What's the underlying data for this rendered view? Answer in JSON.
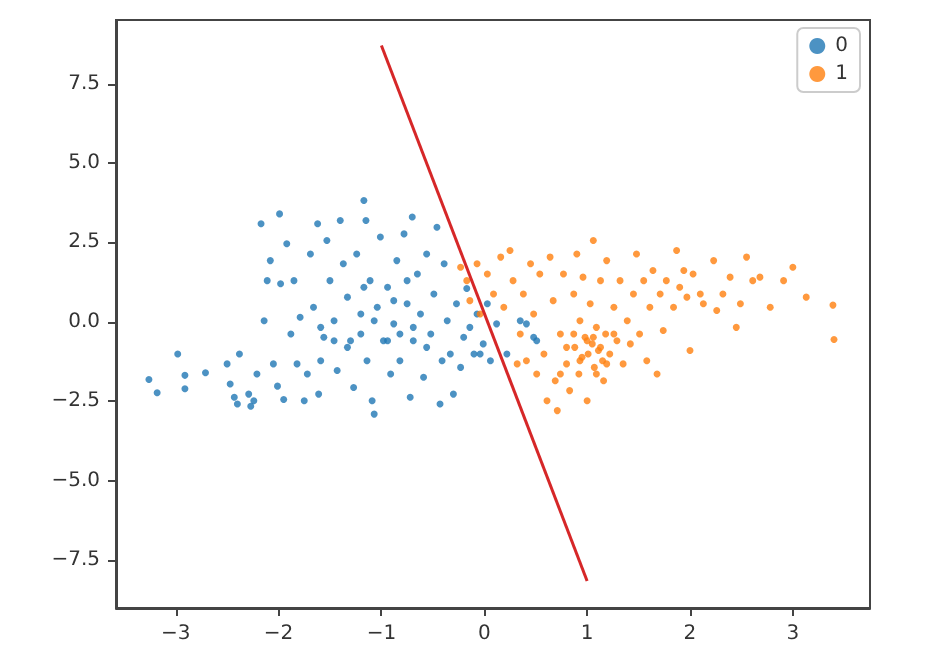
{
  "chart_data": {
    "type": "scatter",
    "xlim": [
      -3.58,
      3.75
    ],
    "ylim": [
      -9.0,
      9.5
    ],
    "xticks": [
      {
        "value": -3,
        "label": "−3"
      },
      {
        "value": -2,
        "label": "−2"
      },
      {
        "value": -1,
        "label": "−1"
      },
      0,
      1,
      2,
      3
    ],
    "yticks": [
      {
        "value": -7.5,
        "label": "−7.5"
      },
      {
        "value": -5,
        "label": "−5.0"
      },
      {
        "value": -2.5,
        "label": "−2.5"
      },
      {
        "value": 0,
        "label": "0.0"
      },
      2.5,
      {
        "value": 5,
        "label": "5.0"
      },
      7.5
    ],
    "grid": false,
    "legend": "top right",
    "marker": "circle",
    "series": [
      {
        "name": "0",
        "color": "#1f77b4",
        "x": [
          -3.26,
          -3.18,
          -2.98,
          -2.91,
          -2.91,
          -2.71,
          -2.5,
          -2.47,
          -2.43,
          -2.4,
          -2.38,
          -2.29,
          -2.27,
          -2.24,
          -2.21,
          -2.17,
          -2.14,
          -2.11,
          -2.08,
          -2.05,
          -2.01,
          -1.99,
          -1.98,
          -1.95,
          -1.92,
          -1.88,
          -1.85,
          -1.82,
          -1.79,
          -1.75,
          -1.72,
          -1.69,
          -1.66,
          -1.62,
          -1.61,
          -1.59,
          -1.56,
          -1.53,
          -1.5,
          -1.46,
          -1.43,
          -1.4,
          -1.37,
          -1.33,
          -1.3,
          -1.27,
          -1.24,
          -1.2,
          -1.17,
          -1.15,
          -1.14,
          -1.11,
          -1.09,
          -1.07,
          -1.04,
          -1.01,
          -0.98,
          -0.94,
          -0.91,
          -0.88,
          -0.85,
          -0.82,
          -0.78,
          -0.75,
          -0.72,
          -0.7,
          -0.69,
          -0.65,
          -0.62,
          -0.59,
          -0.56,
          -0.52,
          -0.49,
          -0.46,
          -0.43,
          -0.41,
          -0.39,
          -0.36,
          -0.33,
          -0.3,
          -0.27,
          -0.23,
          -0.2,
          -0.17,
          -0.14,
          -0.1,
          -0.07,
          -0.04,
          -0.01,
          0.03,
          0.06,
          0.12,
          0.22,
          0.35,
          0.41,
          0.48,
          0.51,
          -1.59,
          -1.46,
          -1.33,
          -1.2,
          -1.07,
          -0.94,
          -0.82,
          -0.69,
          -0.56,
          -0.88,
          -1.17,
          -0.75
        ],
        "values": [
          -1.81,
          -2.23,
          -1.01,
          -1.68,
          -2.1,
          -1.6,
          -1.32,
          -1.95,
          -2.37,
          -2.58,
          -1.01,
          -2.27,
          -2.65,
          -2.48,
          -1.64,
          3.09,
          0.04,
          1.3,
          1.93,
          -1.32,
          -2.02,
          3.4,
          1.2,
          -2.44,
          2.46,
          -0.38,
          1.3,
          -1.32,
          0.15,
          -2.48,
          -1.64,
          2.14,
          0.46,
          3.09,
          -2.27,
          -1.22,
          -0.48,
          2.56,
          1.3,
          0.04,
          -1.53,
          3.19,
          1.83,
          0.78,
          -0.59,
          -2.06,
          2.14,
          0.25,
          3.82,
          3.19,
          -1.22,
          1.3,
          -2.48,
          -2.9,
          0.46,
          2.67,
          -0.59,
          1.09,
          -1.64,
          -0.06,
          1.93,
          -1.22,
          2.77,
          0.57,
          -2.37,
          3.3,
          -0.59,
          1.51,
          0.25,
          -1.74,
          2.14,
          -0.38,
          0.88,
          2.98,
          -2.58,
          -1.22,
          1.83,
          0.04,
          -1.01,
          -2.27,
          0.57,
          -1.43,
          -0.48,
          1.05,
          -0.17,
          -1.01,
          0.25,
          -1.01,
          -0.69,
          0.57,
          -1.22,
          -0.06,
          -1.01,
          0.04,
          -0.06,
          -0.48,
          -0.59,
          -0.17,
          -0.59,
          -0.8,
          -0.38,
          0.04,
          -0.59,
          -0.38,
          -0.17,
          -0.8,
          0.67,
          1.09,
          1.3
        ]
      },
      {
        "name": "1",
        "color": "#ff7f0e",
        "x": [
          -0.23,
          -0.17,
          -0.14,
          -0.07,
          -0.04,
          0.03,
          0.09,
          0.16,
          0.19,
          0.25,
          0.28,
          0.32,
          0.35,
          0.38,
          0.41,
          0.45,
          0.48,
          0.51,
          0.54,
          0.58,
          0.61,
          0.64,
          0.67,
          0.69,
          0.71,
          0.74,
          0.77,
          0.8,
          0.83,
          0.87,
          0.88,
          0.9,
          0.92,
          0.93,
          0.95,
          0.96,
          0.98,
          1.0,
          1.01,
          1.03,
          1.05,
          1.06,
          1.07,
          1.09,
          1.11,
          1.13,
          1.15,
          1.16,
          1.18,
          1.19,
          1.22,
          1.26,
          1.29,
          1.32,
          1.35,
          1.39,
          1.42,
          1.45,
          1.48,
          1.51,
          1.55,
          1.58,
          1.61,
          1.64,
          1.68,
          1.71,
          1.74,
          1.77,
          1.84,
          1.87,
          1.9,
          1.94,
          1.97,
          2.0,
          2.03,
          2.1,
          2.13,
          2.23,
          2.26,
          2.32,
          2.39,
          2.45,
          2.49,
          2.55,
          2.61,
          2.68,
          2.78,
          2.91,
          3.0,
          3.13,
          3.39,
          3.4,
          0.87,
          1.0,
          1.13,
          0.93,
          1.06,
          1.19,
          0.8,
          1.26,
          0.74,
          1.09
        ],
        "values": [
          1.72,
          1.3,
          0.67,
          1.83,
          0.25,
          1.51,
          0.88,
          2.04,
          0.46,
          2.25,
          1.3,
          -1.32,
          -0.38,
          0.88,
          -1.22,
          1.83,
          0.25,
          -1.64,
          1.51,
          -1.01,
          -2.48,
          2.04,
          0.67,
          -1.85,
          -2.79,
          -0.38,
          1.51,
          -1.32,
          -2.16,
          0.88,
          -0.8,
          2.14,
          -1.64,
          0.04,
          -1.11,
          1.41,
          -0.48,
          -2.48,
          -1.01,
          0.57,
          -0.69,
          2.56,
          -1.43,
          -0.17,
          -0.9,
          1.3,
          -1.22,
          -1.85,
          -0.38,
          1.93,
          -1.01,
          0.46,
          -0.59,
          1.3,
          -1.32,
          0.04,
          -0.69,
          0.88,
          2.14,
          -0.38,
          1.3,
          -1.22,
          0.46,
          1.62,
          -1.64,
          0.88,
          -0.27,
          1.3,
          0.46,
          2.25,
          1.09,
          1.62,
          0.78,
          -0.9,
          1.51,
          0.88,
          0.57,
          1.93,
          0.36,
          0.88,
          1.41,
          -0.17,
          0.57,
          2.04,
          1.3,
          1.41,
          0.46,
          1.3,
          1.72,
          0.78,
          0.53,
          -0.55,
          -0.38,
          -0.59,
          -0.8,
          -1.22,
          -0.48,
          -1.32,
          -0.8,
          -0.38,
          -1.64,
          -1.64
        ]
      },
      {
        "type": "line",
        "marker": "none",
        "color": "#d62728",
        "x": [
          -1.0,
          1.0
        ],
        "values": [
          8.7,
          -8.15
        ]
      }
    ]
  }
}
